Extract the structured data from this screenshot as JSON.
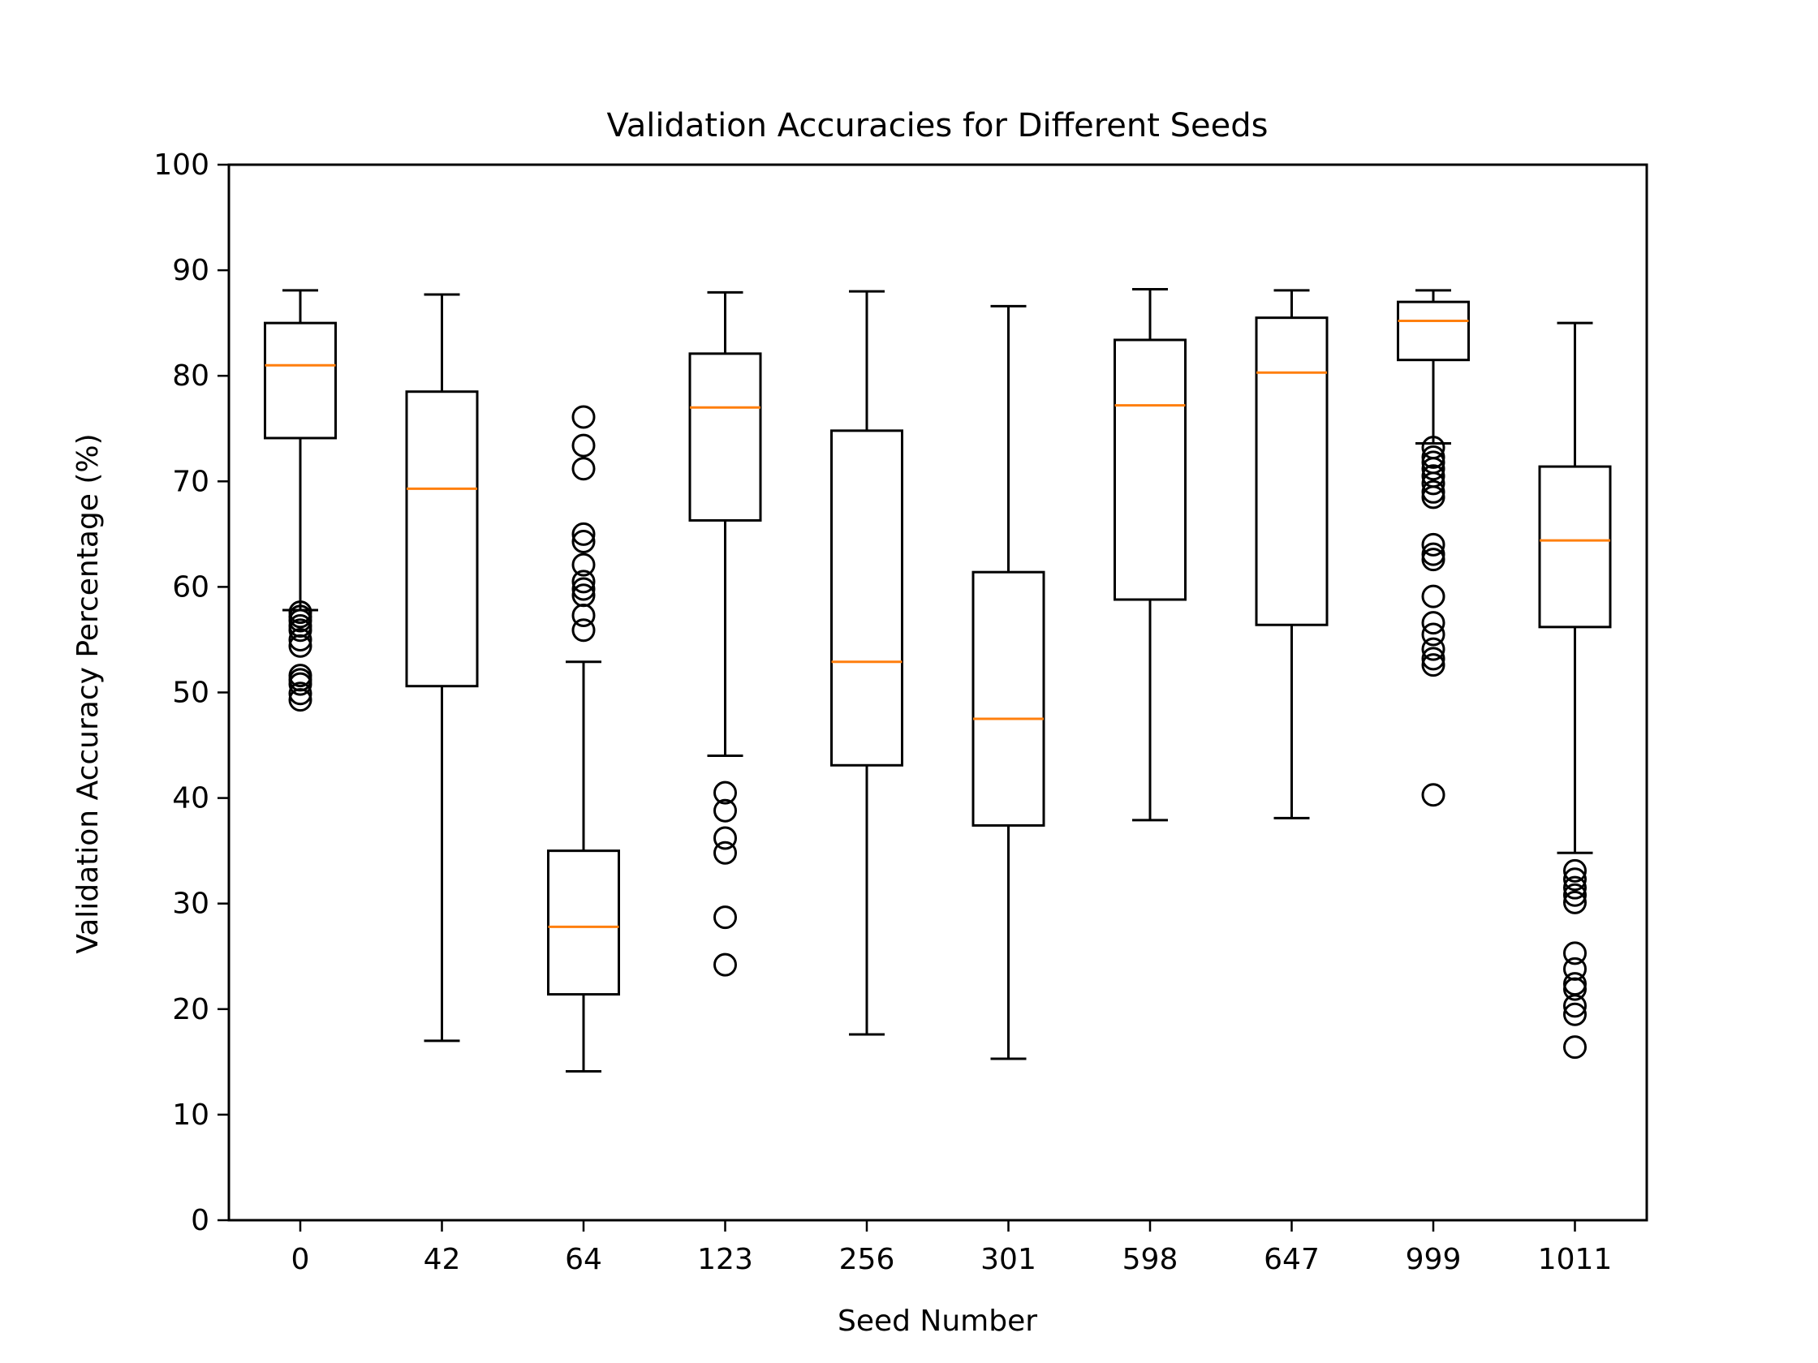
{
  "chart_data": {
    "type": "box",
    "title": "Validation Accuracies for Different Seeds",
    "xlabel": "Seed Number",
    "ylabel": "Validation Accuracy Percentage (%)",
    "ylim": [
      0,
      100
    ],
    "yticks": [
      "0",
      "10",
      "20",
      "30",
      "40",
      "50",
      "60",
      "70",
      "80",
      "90",
      "100"
    ],
    "grid": false,
    "colors": {
      "median": "#ff7f0e",
      "box": "#000000"
    },
    "categories": [
      "0",
      "42",
      "64",
      "123",
      "256",
      "301",
      "598",
      "647",
      "999",
      "1011"
    ],
    "boxes": [
      {
        "whisker_low": 57.8,
        "q1": 74.1,
        "median": 81.0,
        "q3": 85.0,
        "whisker_high": 88.1,
        "outliers": [
          57.6,
          57.2,
          56.8,
          56.3,
          55.9,
          55.0,
          54.4,
          51.6,
          51.2,
          50.8,
          49.9,
          49.3
        ]
      },
      {
        "whisker_low": 17.0,
        "q1": 50.6,
        "median": 69.3,
        "q3": 78.5,
        "whisker_high": 87.7,
        "outliers": []
      },
      {
        "whisker_low": 14.1,
        "q1": 21.4,
        "median": 27.8,
        "q3": 35.0,
        "whisker_high": 52.9,
        "outliers": [
          76.1,
          73.4,
          71.2,
          65.0,
          64.3,
          62.1,
          60.5,
          59.8,
          59.2,
          57.3,
          55.9
        ]
      },
      {
        "whisker_low": 44.0,
        "q1": 66.3,
        "median": 77.0,
        "q3": 82.1,
        "whisker_high": 87.9,
        "outliers": [
          40.5,
          38.8,
          36.2,
          34.8,
          28.7,
          24.2
        ]
      },
      {
        "whisker_low": 17.6,
        "q1": 43.1,
        "median": 52.9,
        "q3": 74.8,
        "whisker_high": 88.0,
        "outliers": []
      },
      {
        "whisker_low": 15.3,
        "q1": 37.4,
        "median": 47.5,
        "q3": 61.4,
        "whisker_high": 86.6,
        "outliers": []
      },
      {
        "whisker_low": 37.9,
        "q1": 58.8,
        "median": 77.2,
        "q3": 83.4,
        "whisker_high": 88.2,
        "outliers": []
      },
      {
        "whisker_low": 38.1,
        "q1": 56.4,
        "median": 80.3,
        "q3": 85.5,
        "whisker_high": 88.1,
        "outliers": []
      },
      {
        "whisker_low": 73.6,
        "q1": 81.5,
        "median": 85.2,
        "q3": 87.0,
        "whisker_high": 88.1,
        "outliers": [
          73.2,
          72.3,
          71.8,
          71.2,
          70.5,
          69.8,
          69.0,
          68.5,
          64.0,
          63.1,
          62.6,
          59.1,
          56.6,
          55.5,
          54.1,
          53.2,
          52.6,
          40.3
        ]
      },
      {
        "whisker_low": 34.8,
        "q1": 56.2,
        "median": 64.4,
        "q3": 71.4,
        "whisker_high": 85.0,
        "outliers": [
          33.1,
          32.3,
          31.5,
          30.8,
          30.1,
          25.3,
          23.8,
          22.4,
          21.9,
          20.3,
          19.5,
          16.4
        ]
      }
    ]
  }
}
